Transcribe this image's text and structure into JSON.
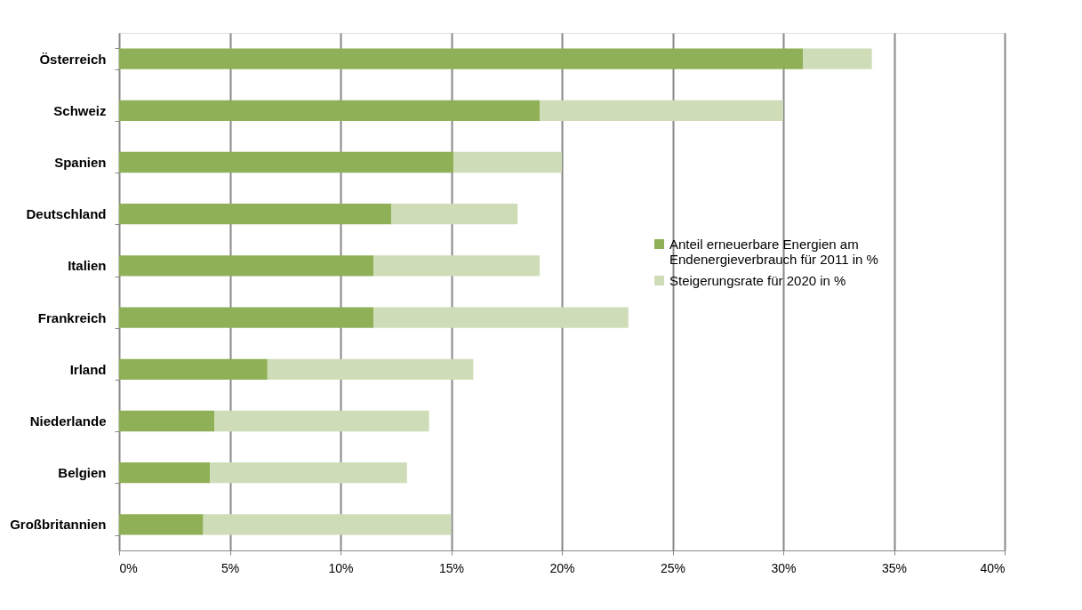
{
  "chart_data": {
    "type": "bar",
    "orientation": "horizontal",
    "stacked": true,
    "categories": [
      "Österreich",
      "Schweiz",
      "Spanien",
      "Deutschland",
      "Italien",
      "Frankreich",
      "Irland",
      "Niederlande",
      "Belgien",
      "Großbritannien"
    ],
    "series": [
      {
        "name": "Anteil erneuerbare Energien am Endenergieverbrauch für 2011 in %",
        "color": "#8fb056",
        "values": [
          30.9,
          19.0,
          15.1,
          12.3,
          11.5,
          11.5,
          6.7,
          4.3,
          4.1,
          3.8
        ]
      },
      {
        "name": "Steigerungsrate für 2020 in %",
        "color": "#cfdcb8",
        "values": [
          3.1,
          11.0,
          4.9,
          5.7,
          7.5,
          11.5,
          9.3,
          9.7,
          8.9,
          11.2
        ]
      }
    ],
    "xlim": [
      0,
      40
    ],
    "xticks": [
      {
        "value": 0,
        "label": "0%"
      },
      {
        "value": 5,
        "label": "5%"
      },
      {
        "value": 10,
        "label": "10%"
      },
      {
        "value": 15,
        "label": "15%"
      },
      {
        "value": 20,
        "label": "20%"
      },
      {
        "value": 25,
        "label": "25%"
      },
      {
        "value": 30,
        "label": "30%"
      },
      {
        "value": 35,
        "label": "35%"
      },
      {
        "value": 40,
        "label": "40%"
      }
    ],
    "grid": "x",
    "legend": "right"
  }
}
